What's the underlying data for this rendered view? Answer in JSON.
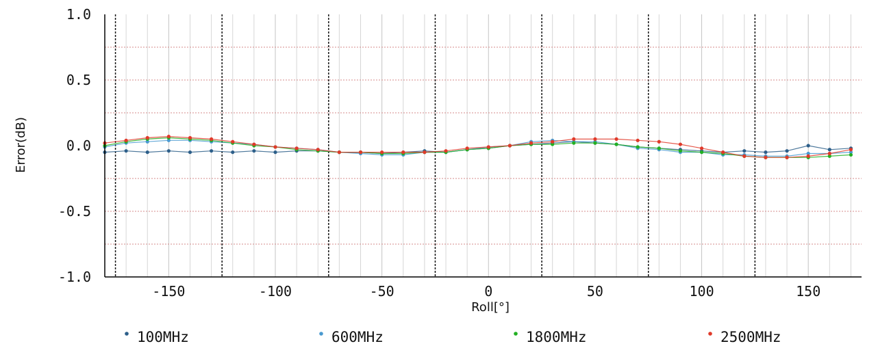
{
  "chart_data": {
    "type": "line",
    "title": "",
    "xlabel": "Roll[°]",
    "ylabel": "Error(dB)",
    "xlim": [
      -180,
      175
    ],
    "ylim": [
      -1.0,
      1.0
    ],
    "x_ticks": [
      -150,
      -100,
      -50,
      0,
      50,
      100,
      150
    ],
    "x_tick_labels": [
      "-150",
      "-100",
      "-50",
      "0",
      "50",
      "100",
      "150"
    ],
    "y_ticks": [
      1.0,
      0.5,
      0.0,
      -0.5,
      -1.0
    ],
    "y_tick_labels": [
      "1.0",
      "0.5",
      "0.0",
      "-0.5",
      "-1.0"
    ],
    "grid": true,
    "legend_position": "bottom",
    "x": [
      -180,
      -170,
      -160,
      -150,
      -140,
      -130,
      -120,
      -110,
      -100,
      -90,
      -80,
      -70,
      -60,
      -50,
      -40,
      -30,
      -20,
      -10,
      0,
      10,
      20,
      30,
      40,
      50,
      60,
      70,
      80,
      90,
      100,
      110,
      120,
      130,
      140,
      150,
      160,
      170
    ],
    "series": [
      {
        "name": "100MHz",
        "color": "#2d5f8a",
        "values": [
          -0.05,
          -0.04,
          -0.05,
          -0.04,
          -0.05,
          -0.04,
          -0.05,
          -0.04,
          -0.05,
          -0.04,
          -0.04,
          -0.05,
          -0.05,
          -0.06,
          -0.05,
          -0.04,
          -0.05,
          -0.03,
          -0.02,
          0.0,
          0.01,
          0.02,
          0.03,
          0.02,
          0.01,
          -0.01,
          -0.02,
          -0.03,
          -0.04,
          -0.05,
          -0.04,
          -0.05,
          -0.04,
          0.0,
          -0.03,
          -0.02
        ]
      },
      {
        "name": "600MHz",
        "color": "#4a9ad0",
        "values": [
          -0.01,
          0.02,
          0.03,
          0.04,
          0.04,
          0.03,
          0.02,
          0.01,
          -0.01,
          -0.02,
          -0.03,
          -0.05,
          -0.06,
          -0.07,
          -0.07,
          -0.05,
          -0.05,
          -0.03,
          -0.01,
          0.0,
          0.03,
          0.04,
          0.03,
          0.03,
          0.01,
          -0.02,
          -0.03,
          -0.05,
          -0.05,
          -0.07,
          -0.07,
          -0.08,
          -0.08,
          -0.06,
          -0.06,
          -0.05
        ]
      },
      {
        "name": "1800MHz",
        "color": "#22b022",
        "values": [
          0.0,
          0.03,
          0.05,
          0.06,
          0.05,
          0.04,
          0.02,
          0.0,
          -0.01,
          -0.03,
          -0.04,
          -0.05,
          -0.05,
          -0.06,
          -0.06,
          -0.05,
          -0.05,
          -0.03,
          -0.02,
          0.0,
          0.01,
          0.01,
          0.02,
          0.02,
          0.01,
          -0.01,
          -0.02,
          -0.04,
          -0.05,
          -0.06,
          -0.08,
          -0.09,
          -0.09,
          -0.09,
          -0.08,
          -0.07
        ]
      },
      {
        "name": "2500MHz",
        "color": "#e03a2a",
        "values": [
          0.02,
          0.04,
          0.06,
          0.07,
          0.06,
          0.05,
          0.03,
          0.01,
          -0.01,
          -0.02,
          -0.03,
          -0.05,
          -0.05,
          -0.05,
          -0.05,
          -0.05,
          -0.04,
          -0.02,
          -0.01,
          0.0,
          0.02,
          0.03,
          0.05,
          0.05,
          0.05,
          0.04,
          0.03,
          0.01,
          -0.02,
          -0.05,
          -0.08,
          -0.09,
          -0.09,
          -0.08,
          -0.06,
          -0.03
        ]
      }
    ]
  }
}
